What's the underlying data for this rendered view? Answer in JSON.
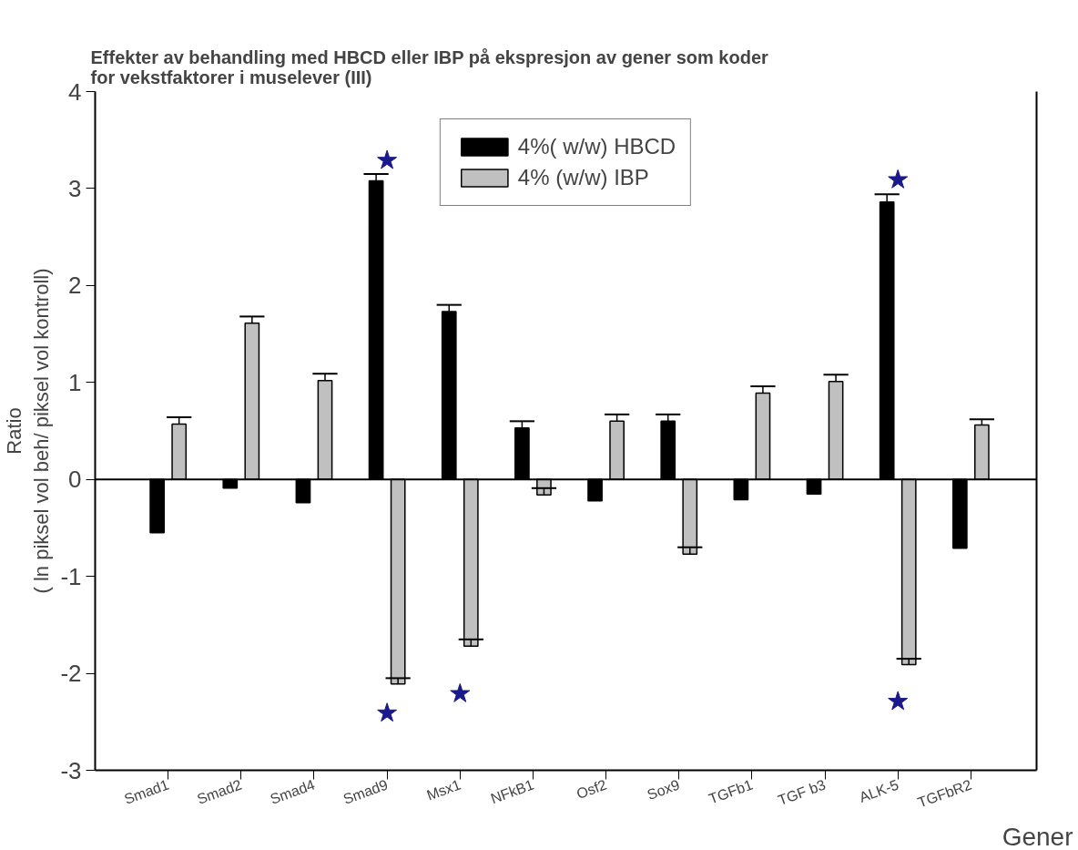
{
  "chart_data": {
    "type": "bar",
    "title": "Effekter av behandling med HBCD eller IBP på ekspresjon av gener som koder\nfor vekstfaktorer i muselever (III)",
    "xlabel": "Gener",
    "ylabel": "Ratio\n( ln piksel vol beh/ piksel vol kontroll)",
    "categories": [
      "Smad1",
      "Smad2",
      "Smad4",
      "Smad9",
      "Msx1",
      "NFkB1",
      "Osf2",
      "Sox9",
      "TGFb1",
      "TGF b3",
      "ALK-5",
      "TGFbR2"
    ],
    "series": [
      {
        "name": "4%( w/w) HBCD",
        "color": "#000000",
        "values": [
          -0.55,
          -0.09,
          -0.24,
          3.08,
          1.73,
          0.53,
          -0.22,
          0.6,
          -0.21,
          -0.15,
          2.86,
          -0.71
        ],
        "errors": [
          null,
          null,
          null,
          [
            3.08,
            3.15
          ],
          [
            1.73,
            1.8
          ],
          [
            0.53,
            0.6
          ],
          null,
          [
            0.6,
            0.67
          ],
          null,
          null,
          [
            2.86,
            2.94
          ],
          null
        ]
      },
      {
        "name": "4% (w/w) IBP",
        "color": "#c0c0c0",
        "values": [
          0.57,
          1.61,
          1.02,
          -2.11,
          -1.72,
          -0.16,
          0.6,
          -0.77,
          0.89,
          1.01,
          -1.91,
          0.56
        ],
        "errors": [
          [
            0.57,
            0.64
          ],
          [
            1.61,
            1.68
          ],
          [
            1.02,
            1.09
          ],
          [
            -2.11,
            -2.05
          ],
          [
            -1.72,
            -1.65
          ],
          [
            -0.16,
            -0.09
          ],
          [
            0.6,
            0.67
          ],
          [
            -0.77,
            -0.7
          ],
          [
            0.89,
            0.96
          ],
          [
            1.01,
            1.08
          ],
          [
            -1.91,
            -1.85
          ],
          [
            0.56,
            0.62
          ]
        ]
      },
      {
        "type": "scatter",
        "marker": "star",
        "color": "#1a1a8c",
        "x": [
          "Smad9",
          "Smad9",
          "Msx1",
          "ALK-5",
          "ALK-5"
        ],
        "values": [
          3.29,
          -2.41,
          -2.21,
          3.09,
          -2.29
        ]
      }
    ],
    "ylim": [
      -3,
      4
    ],
    "yticks": [
      -3,
      -2,
      -1,
      0,
      1,
      2,
      3,
      4
    ],
    "ref_lines": [
      {
        "axis": "y",
        "value": 0,
        "color": "#000000"
      }
    ],
    "legend": "top",
    "grid": false
  }
}
